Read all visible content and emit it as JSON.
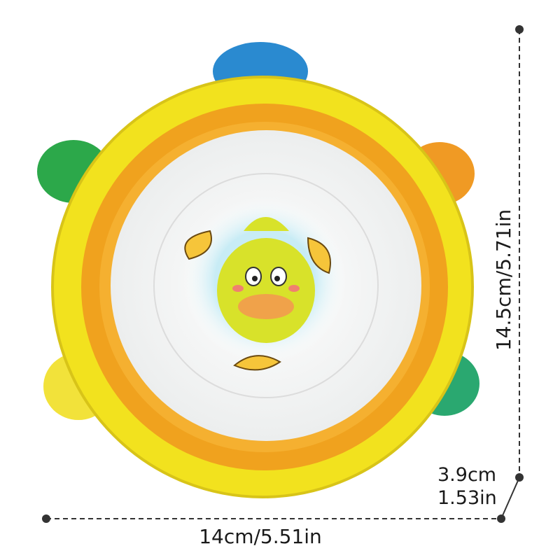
{
  "product": {
    "name": "duck tambourine toy",
    "colors": {
      "rim": "#f2e21e",
      "inner_ring": "#f0a21e",
      "drum_face": "#f7f7f5",
      "duck": "#d8e22a",
      "beak": "#f0a24a"
    }
  },
  "dimensions": {
    "height": "14.5cm/5.71in",
    "width": "14cm/5.51in",
    "depth_cm": "3.9cm",
    "depth_in": "1.53in"
  }
}
